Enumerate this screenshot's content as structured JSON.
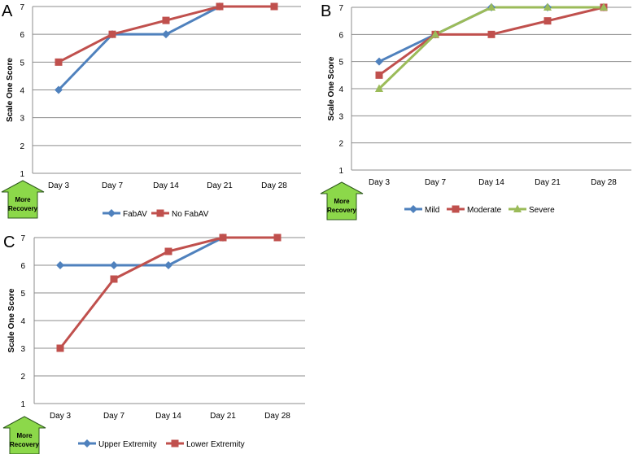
{
  "colors": {
    "blue": "#4f81bd",
    "red": "#c0504d",
    "green": "#9bbb59",
    "arrow": "#8cd84a",
    "grid": "#8c8c8c"
  },
  "recovery_label": [
    "More",
    "Recovery"
  ],
  "chart_data": [
    {
      "panel": "A",
      "type": "line",
      "ylabel": "Scale One Score",
      "categories": [
        "Day 3",
        "Day 7",
        "Day 14",
        "Day 21",
        "Day 28"
      ],
      "ylim": [
        1,
        7
      ],
      "yticks": [
        1,
        2,
        3,
        4,
        5,
        6,
        7
      ],
      "series": [
        {
          "name": "FabAV",
          "color": "#4f81bd",
          "marker": "diamond",
          "values": [
            4,
            6,
            6,
            7,
            null
          ]
        },
        {
          "name": "No FabAV",
          "color": "#c0504d",
          "marker": "square",
          "values": [
            5,
            6,
            6.5,
            7,
            7
          ]
        }
      ]
    },
    {
      "panel": "B",
      "type": "line",
      "ylabel": "Scale One Score",
      "categories": [
        "Day 3",
        "Day 7",
        "Day 14",
        "Day 21",
        "Day 28"
      ],
      "ylim": [
        1,
        7
      ],
      "yticks": [
        1,
        2,
        3,
        4,
        5,
        6,
        7
      ],
      "series": [
        {
          "name": "Mild",
          "color": "#4f81bd",
          "marker": "diamond",
          "values": [
            5,
            6,
            7,
            7,
            7
          ]
        },
        {
          "name": "Moderate",
          "color": "#c0504d",
          "marker": "square",
          "values": [
            4.5,
            6,
            6,
            6.5,
            7
          ]
        },
        {
          "name": "Severe",
          "color": "#9bbb59",
          "marker": "triangle",
          "values": [
            4,
            6,
            7,
            7,
            7
          ]
        }
      ]
    },
    {
      "panel": "C",
      "type": "line",
      "ylabel": "Scale One Score",
      "categories": [
        "Day 3",
        "Day 7",
        "Day 14",
        "Day 21",
        "Day 28"
      ],
      "ylim": [
        1,
        7
      ],
      "yticks": [
        1,
        2,
        3,
        4,
        5,
        6,
        7
      ],
      "series": [
        {
          "name": "Upper Extremity",
          "color": "#4f81bd",
          "marker": "diamond",
          "values": [
            6,
            6,
            6,
            7,
            null
          ]
        },
        {
          "name": "Lower Extremity",
          "color": "#c0504d",
          "marker": "square",
          "values": [
            3,
            5.5,
            6.5,
            7,
            7
          ]
        }
      ]
    }
  ]
}
